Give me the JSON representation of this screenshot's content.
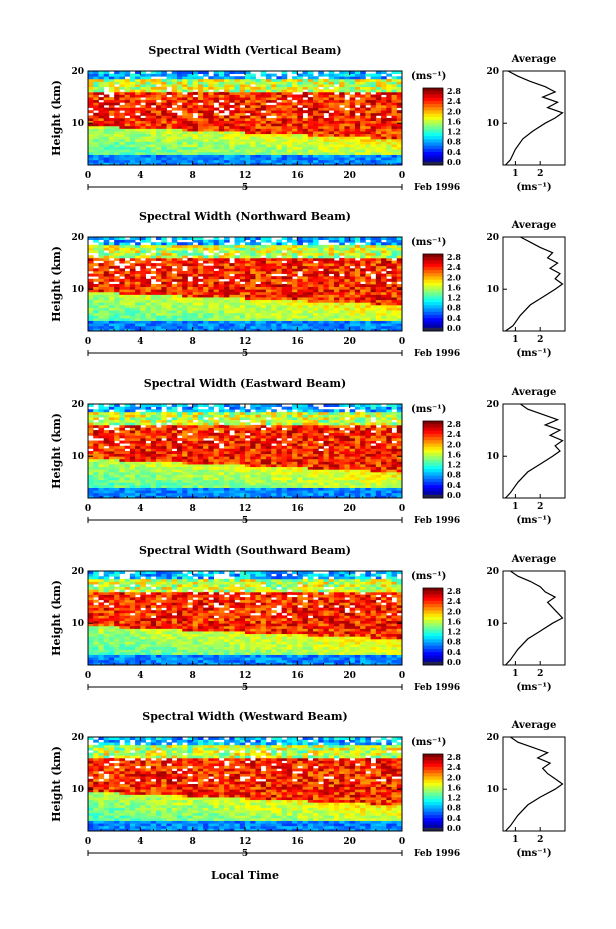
{
  "figure": {
    "ylabel": "Height (km)",
    "xlabel": "Local Time",
    "date_label": "Feb 1996",
    "day_marker": "5",
    "colorbar_unit": "(ms⁻¹)",
    "average_title": "Average",
    "average_xlabel": "(ms⁻¹)"
  },
  "chart_data": [
    {
      "type": "heatmap",
      "title": "Spectral Width (Vertical Beam)",
      "x_ticks": [
        "0",
        "4",
        "8",
        "12",
        "16",
        "20",
        "0"
      ],
      "xlim": [
        0,
        24
      ],
      "y_ticks": [
        "20",
        "10"
      ],
      "ylim": [
        2,
        20
      ],
      "colorbar_ticks": [
        "2.8",
        "2.4",
        "2.0",
        "1.6",
        "1.2",
        "0.8",
        "0.4",
        "0.0"
      ],
      "colorbar_range": [
        0.0,
        3.0
      ],
      "average": {
        "x_ticks": [
          "1",
          "2"
        ],
        "xlim": [
          0.5,
          3.0
        ],
        "y_ticks": [
          "20",
          "10"
        ],
        "ylim": [
          2,
          20
        ],
        "profile_x": [
          0.6,
          0.8,
          1.0,
          1.3,
          1.7,
          2.2,
          2.6,
          2.9,
          2.3,
          2.7,
          2.1,
          2.6,
          2.2,
          1.6,
          1.1,
          0.7
        ],
        "profile_y": [
          2,
          3,
          5,
          7,
          8.5,
          10,
          11,
          12,
          13,
          14,
          15,
          16,
          17,
          18,
          19,
          20
        ]
      }
    },
    {
      "type": "heatmap",
      "title": "Spectral Width (Northward Beam)",
      "x_ticks": [
        "0",
        "4",
        "8",
        "12",
        "16",
        "20",
        "0"
      ],
      "xlim": [
        0,
        24
      ],
      "y_ticks": [
        "20",
        "10"
      ],
      "ylim": [
        2,
        20
      ],
      "colorbar_ticks": [
        "2.8",
        "2.4",
        "2.0",
        "1.6",
        "1.2",
        "0.8",
        "0.4",
        "0.0"
      ],
      "colorbar_range": [
        0.0,
        3.0
      ],
      "average": {
        "x_ticks": [
          "1",
          "2"
        ],
        "xlim": [
          0.5,
          3.0
        ],
        "y_ticks": [
          "20",
          "10"
        ],
        "ylim": [
          2,
          20
        ],
        "profile_x": [
          0.6,
          0.9,
          1.2,
          1.6,
          2.1,
          2.6,
          2.9,
          2.6,
          2.8,
          2.4,
          2.7,
          2.3,
          2.5,
          2.0,
          1.6,
          1.2
        ],
        "profile_y": [
          2,
          3,
          5,
          7,
          8.5,
          10,
          11,
          12,
          13,
          14,
          15,
          16,
          17,
          18,
          19,
          20
        ]
      }
    },
    {
      "type": "heatmap",
      "title": "Spectral Width (Eastward Beam)",
      "x_ticks": [
        "0",
        "4",
        "8",
        "12",
        "16",
        "20",
        "0"
      ],
      "xlim": [
        0,
        24
      ],
      "y_ticks": [
        "20",
        "10"
      ],
      "ylim": [
        2,
        20
      ],
      "colorbar_ticks": [
        "2.8",
        "2.4",
        "2.0",
        "1.6",
        "1.2",
        "0.8",
        "0.4",
        "0.0"
      ],
      "colorbar_range": [
        0.0,
        3.0
      ],
      "average": {
        "x_ticks": [
          "1",
          "2"
        ],
        "xlim": [
          0.5,
          3.0
        ],
        "y_ticks": [
          "20",
          "10"
        ],
        "ylim": [
          2,
          20
        ],
        "profile_x": [
          0.6,
          0.8,
          1.1,
          1.5,
          2.0,
          2.5,
          2.8,
          2.6,
          2.9,
          2.4,
          2.8,
          2.2,
          2.7,
          2.1,
          1.5,
          1.2
        ],
        "profile_y": [
          2,
          3,
          5,
          7,
          8.5,
          10,
          11,
          12,
          13,
          14,
          15,
          16,
          17,
          18,
          19,
          20
        ]
      }
    },
    {
      "type": "heatmap",
      "title": "Spectral Width (Southward Beam)",
      "x_ticks": [
        "0",
        "4",
        "8",
        "12",
        "16",
        "20",
        "0"
      ],
      "xlim": [
        0,
        24
      ],
      "y_ticks": [
        "20",
        "10"
      ],
      "ylim": [
        2,
        20
      ],
      "colorbar_ticks": [
        "2.8",
        "2.4",
        "2.0",
        "1.6",
        "1.2",
        "0.8",
        "0.4",
        "0.0"
      ],
      "colorbar_range": [
        0.0,
        3.0
      ],
      "average": {
        "x_ticks": [
          "1",
          "2"
        ],
        "xlim": [
          0.5,
          3.0
        ],
        "y_ticks": [
          "20",
          "10"
        ],
        "ylim": [
          2,
          20
        ],
        "profile_x": [
          0.6,
          0.8,
          1.1,
          1.5,
          2.0,
          2.5,
          2.9,
          2.7,
          2.5,
          2.3,
          2.6,
          2.2,
          2.0,
          1.6,
          1.1,
          0.8
        ],
        "profile_y": [
          2,
          3,
          5,
          7,
          8.5,
          10,
          11,
          12,
          13,
          14,
          15,
          16,
          17,
          18,
          19,
          20
        ]
      }
    },
    {
      "type": "heatmap",
      "title": "Spectral Width (Westward Beam)",
      "x_ticks": [
        "0",
        "4",
        "8",
        "12",
        "16",
        "20",
        "0"
      ],
      "xlim": [
        0,
        24
      ],
      "y_ticks": [
        "20",
        "10"
      ],
      "ylim": [
        2,
        20
      ],
      "colorbar_ticks": [
        "2.8",
        "2.4",
        "2.0",
        "1.6",
        "1.2",
        "0.8",
        "0.4",
        "0.0"
      ],
      "colorbar_range": [
        0.0,
        3.0
      ],
      "average": {
        "x_ticks": [
          "1",
          "2"
        ],
        "xlim": [
          0.5,
          3.0
        ],
        "y_ticks": [
          "20",
          "10"
        ],
        "ylim": [
          2,
          20
        ],
        "profile_x": [
          0.6,
          0.8,
          1.1,
          1.5,
          2.0,
          2.6,
          2.9,
          2.6,
          2.3,
          2.1,
          2.4,
          1.9,
          2.3,
          1.7,
          1.1,
          0.8
        ],
        "profile_y": [
          2,
          3,
          5,
          7,
          8.5,
          10,
          11,
          12,
          13,
          14,
          15,
          16,
          17,
          18,
          19,
          20
        ]
      }
    }
  ]
}
